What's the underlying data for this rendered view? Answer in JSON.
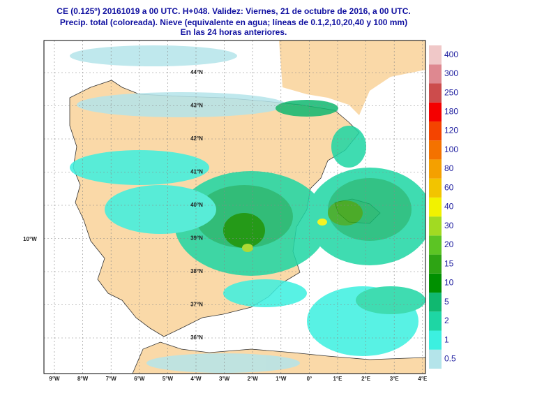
{
  "header": {
    "lines": [
      "CE (0.125º) 20161019 a 00 UTC.  H+048. Validez: Viernes, 21 de octubre de 2016,  a  00 UTC.",
      "Precip. total (coloreada). Nieve (equivalente en agua; líneas de 0.1,2,10,20,40 y 100 mm)",
      "En las 24 horas anteriores."
    ]
  },
  "map": {
    "longitudes": [
      "9°W",
      "8°W",
      "7°W",
      "6°W",
      "5°W",
      "4°W",
      "3°W",
      "2°W",
      "1°W",
      "0°",
      "1°E",
      "2°E",
      "3°E",
      "4°E"
    ],
    "latitudes": [
      "44°N",
      "43°N",
      "42°N",
      "41°N",
      "40°N",
      "39°N",
      "38°N",
      "37°N",
      "36°N"
    ],
    "west_label": "10°W"
  },
  "legend": {
    "levels": [
      0.5,
      1,
      2,
      5,
      10,
      15,
      20,
      30,
      40,
      60,
      80,
      100,
      120,
      180,
      250,
      300,
      400
    ],
    "colors": [
      "#b4e4ea",
      "#3cf0e0",
      "#1ed6a4",
      "#10b870",
      "#009000",
      "#2ea414",
      "#5cc424",
      "#a2da22",
      "#f2f200",
      "#f2c400",
      "#f4a000",
      "#f47200",
      "#f44400",
      "#f40000",
      "#cc4c4c",
      "#de8890",
      "#f0c8c8"
    ]
  }
}
